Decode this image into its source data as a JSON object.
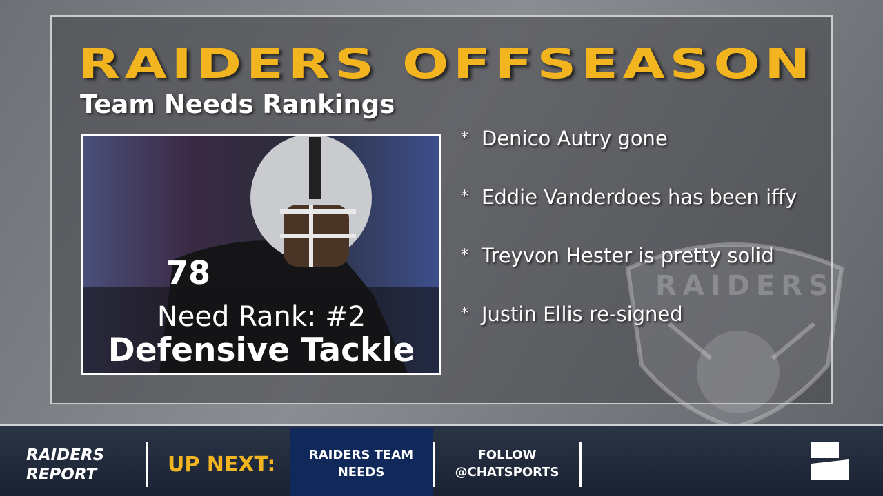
{
  "header": {
    "title": "RAIDERS OFFSEASON",
    "subtitle": "Team Needs Rankings"
  },
  "photo": {
    "rank_line": "Need Rank: #2",
    "position": "Defensive Tackle"
  },
  "bullet": "*",
  "notes": [
    "Denico Autry gone",
    "Eddie Vanderdoes has been iffy",
    "Treyvon Hester is pretty solid",
    "Justin Ellis re-signed"
  ],
  "watermark": "RAIDERS",
  "footer": {
    "show": [
      "RAIDERS",
      "REPORT"
    ],
    "up_next": "UP NEXT:",
    "next_item": [
      "RAIDERS TEAM",
      "NEEDS"
    ],
    "follow": [
      "FOLLOW",
      "@CHATSPORTS"
    ]
  }
}
